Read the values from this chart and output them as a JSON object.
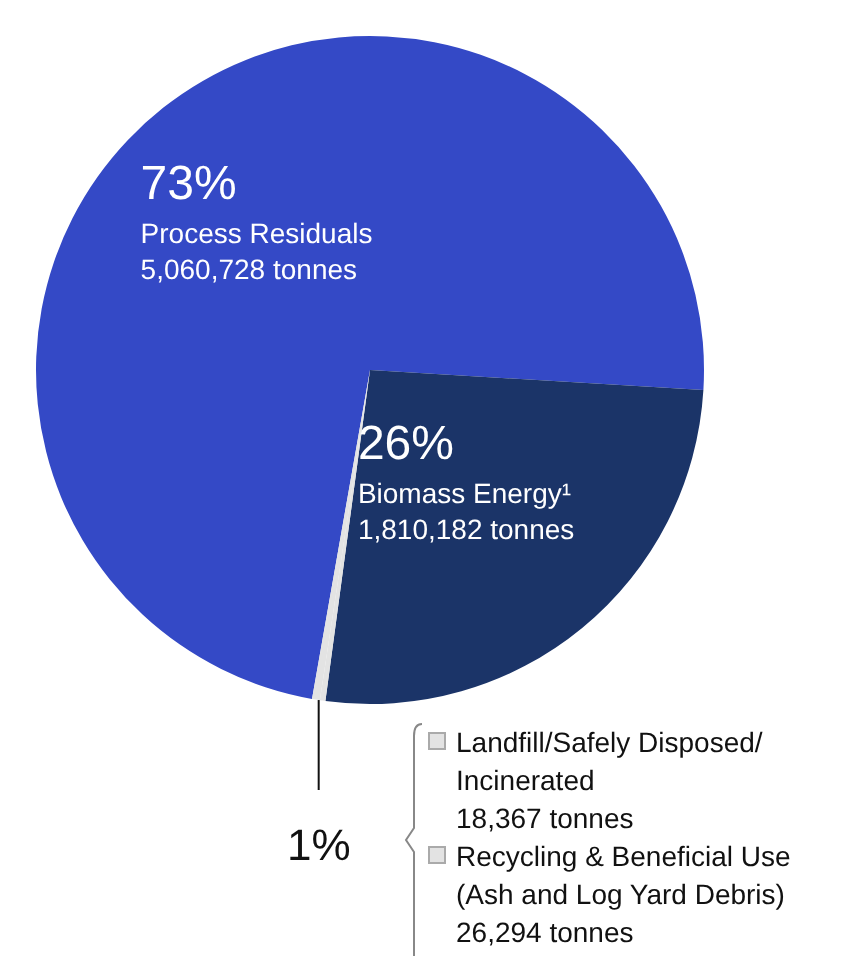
{
  "chart_data": {
    "type": "pie",
    "categories": [
      "Process Residuals",
      "Biomass Energy¹",
      "Landfill/Safely Disposed/ Incinerated",
      "Recycling & Beneficial Use (Ash and Log Yard Debris)"
    ],
    "values": [
      5060728,
      1810182,
      18367,
      26294
    ],
    "colors": [
      "#3449c6",
      "#1b3468",
      "#e3e3e3",
      "#e3e3e3"
    ],
    "value_labels": [
      "5,060,728 tonnes",
      "1,810,182 tonnes",
      "18,367 tonnes",
      "26,294 tonnes"
    ],
    "annotations": [
      {
        "text": "73%",
        "x": "Process Residuals"
      },
      {
        "text": "26%",
        "x": "Biomass Energy¹"
      },
      "1%"
    ],
    "legend": "bottom right"
  }
}
